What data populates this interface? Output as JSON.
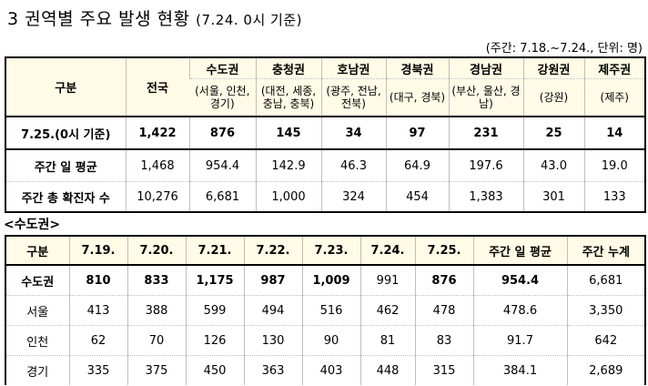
{
  "title": {
    "main": "3 권역별 주요 발생 현황",
    "sub": "(7.24. 0시 기준)"
  },
  "unit_note": "(주간: 7.18.~7.24., 단위: 명)",
  "regional_table": {
    "col_header": "구분",
    "nationwide": "전국",
    "regions": [
      {
        "name": "수도권",
        "detail": "(서울, 인천, 경기)"
      },
      {
        "name": "충청권",
        "detail": "(대전, 세종, 충남, 충북)"
      },
      {
        "name": "호남권",
        "detail": "(광주, 전남, 전북)"
      },
      {
        "name": "경북권",
        "detail": "(대구, 경북)"
      },
      {
        "name": "경남권",
        "detail": "(부산, 울산, 경남)"
      },
      {
        "name": "강원권",
        "detail": "(강원)"
      },
      {
        "name": "제주권",
        "detail": "(제주)"
      }
    ],
    "rows": [
      {
        "label": "7.25.(0시 기준)",
        "values": [
          "1,422",
          "876",
          "145",
          "34",
          "97",
          "231",
          "25",
          "14"
        ]
      },
      {
        "label": "주간 일 평균",
        "values": [
          "1,468",
          "954.4",
          "142.9",
          "46.3",
          "64.9",
          "197.6",
          "43.0",
          "19.0"
        ]
      },
      {
        "label": "주간 총 확진자 수",
        "values": [
          "10,276",
          "6,681",
          "1,000",
          "324",
          "454",
          "1,383",
          "301",
          "133"
        ]
      }
    ]
  },
  "capital_section_title": "<수도권>",
  "capital_table": {
    "headers": [
      "구분",
      "7.19.",
      "7.20.",
      "7.21.",
      "7.22.",
      "7.23.",
      "7.24.",
      "7.25.",
      "주간 일 평균",
      "주간 누계"
    ],
    "rows": [
      {
        "label": "수도권",
        "values": [
          "810",
          "833",
          "1,175",
          "987",
          "1,009",
          "991",
          "876",
          "954.4",
          "6,681"
        ]
      },
      {
        "label": "서울",
        "values": [
          "413",
          "388",
          "599",
          "494",
          "516",
          "462",
          "478",
          "478.6",
          "3,350"
        ]
      },
      {
        "label": "인천",
        "values": [
          "62",
          "70",
          "126",
          "130",
          "90",
          "81",
          "83",
          "91.7",
          "642"
        ]
      },
      {
        "label": "경기",
        "values": [
          "335",
          "375",
          "450",
          "363",
          "403",
          "448",
          "315",
          "384.1",
          "2,689"
        ]
      }
    ]
  }
}
